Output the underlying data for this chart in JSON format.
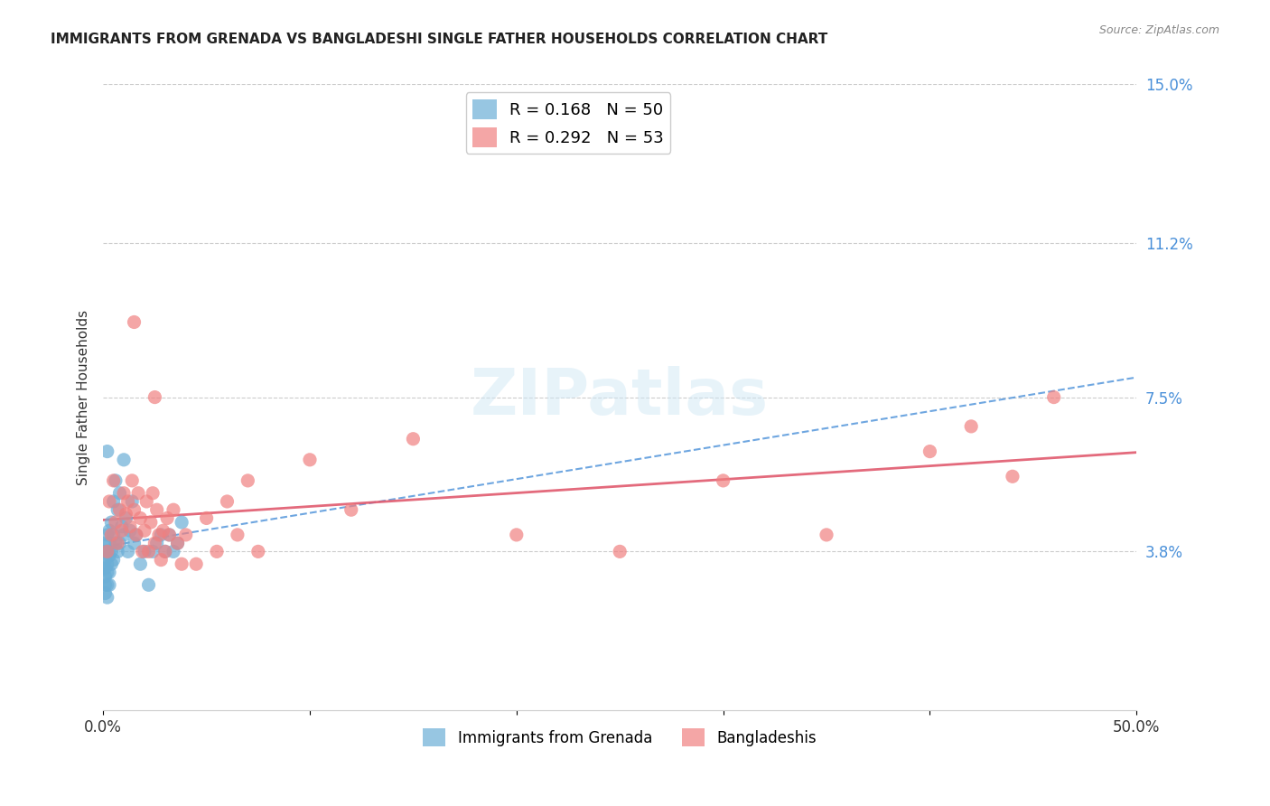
{
  "title": "IMMIGRANTS FROM GRENADA VS BANGLADESHI SINGLE FATHER HOUSEHOLDS CORRELATION CHART",
  "source": "Source: ZipAtlas.com",
  "ylabel": "Single Father Households",
  "legend_label_1": "Immigrants from Grenada",
  "legend_label_2": "Bangladeshis",
  "r1": 0.168,
  "n1": 50,
  "r2": 0.292,
  "n2": 53,
  "color1": "#6baed6",
  "color2": "#f08080",
  "line1_color": "#4a90d9",
  "line2_color": "#e05a6e",
  "xlim": [
    0.0,
    0.5
  ],
  "ylim": [
    0.0,
    0.15
  ],
  "ytick_labels_right": [
    "3.8%",
    "7.5%",
    "11.2%",
    "15.0%"
  ],
  "ytick_vals_right": [
    0.038,
    0.075,
    0.112,
    0.15
  ],
  "watermark": "ZIPatlas",
  "scatter_blue_x": [
    0.001,
    0.001,
    0.001,
    0.001,
    0.001,
    0.001,
    0.001,
    0.002,
    0.002,
    0.002,
    0.002,
    0.002,
    0.002,
    0.003,
    0.003,
    0.003,
    0.003,
    0.003,
    0.004,
    0.004,
    0.004,
    0.005,
    0.005,
    0.005,
    0.006,
    0.006,
    0.007,
    0.007,
    0.008,
    0.008,
    0.009,
    0.01,
    0.01,
    0.011,
    0.012,
    0.013,
    0.014,
    0.015,
    0.016,
    0.018,
    0.02,
    0.022,
    0.024,
    0.026,
    0.028,
    0.03,
    0.032,
    0.034,
    0.036,
    0.038
  ],
  "scatter_blue_y": [
    0.04,
    0.038,
    0.036,
    0.034,
    0.032,
    0.03,
    0.028,
    0.042,
    0.038,
    0.035,
    0.033,
    0.03,
    0.027,
    0.043,
    0.04,
    0.037,
    0.033,
    0.03,
    0.045,
    0.038,
    0.035,
    0.05,
    0.042,
    0.036,
    0.055,
    0.04,
    0.048,
    0.038,
    0.052,
    0.04,
    0.044,
    0.06,
    0.042,
    0.046,
    0.038,
    0.043,
    0.05,
    0.04,
    0.042,
    0.035,
    0.038,
    0.03,
    0.038,
    0.04,
    0.042,
    0.038,
    0.042,
    0.038,
    0.04,
    0.045
  ],
  "scatter_pink_x": [
    0.002,
    0.003,
    0.004,
    0.005,
    0.006,
    0.007,
    0.008,
    0.009,
    0.01,
    0.011,
    0.012,
    0.013,
    0.014,
    0.015,
    0.016,
    0.017,
    0.018,
    0.019,
    0.02,
    0.021,
    0.022,
    0.023,
    0.024,
    0.025,
    0.026,
    0.027,
    0.028,
    0.029,
    0.03,
    0.031,
    0.032,
    0.034,
    0.036,
    0.038,
    0.04,
    0.045,
    0.05,
    0.055,
    0.06,
    0.065,
    0.07,
    0.075,
    0.1,
    0.12,
    0.15,
    0.2,
    0.25,
    0.3,
    0.35,
    0.4,
    0.42,
    0.44,
    0.46
  ],
  "scatter_pink_y": [
    0.038,
    0.05,
    0.042,
    0.055,
    0.045,
    0.04,
    0.048,
    0.043,
    0.052,
    0.047,
    0.05,
    0.044,
    0.055,
    0.048,
    0.042,
    0.052,
    0.046,
    0.038,
    0.043,
    0.05,
    0.038,
    0.045,
    0.052,
    0.04,
    0.048,
    0.042,
    0.036,
    0.043,
    0.038,
    0.046,
    0.042,
    0.048,
    0.04,
    0.035,
    0.042,
    0.035,
    0.046,
    0.038,
    0.05,
    0.042,
    0.055,
    0.038,
    0.06,
    0.048,
    0.065,
    0.042,
    0.038,
    0.055,
    0.042,
    0.062,
    0.068,
    0.056,
    0.075
  ],
  "blue_outlier_x": [
    0.002
  ],
  "blue_outlier_y": [
    0.062
  ],
  "pink_outlier1_x": [
    0.015
  ],
  "pink_outlier1_y": [
    0.093
  ],
  "pink_outlier2_x": [
    0.025
  ],
  "pink_outlier2_y": [
    0.075
  ]
}
